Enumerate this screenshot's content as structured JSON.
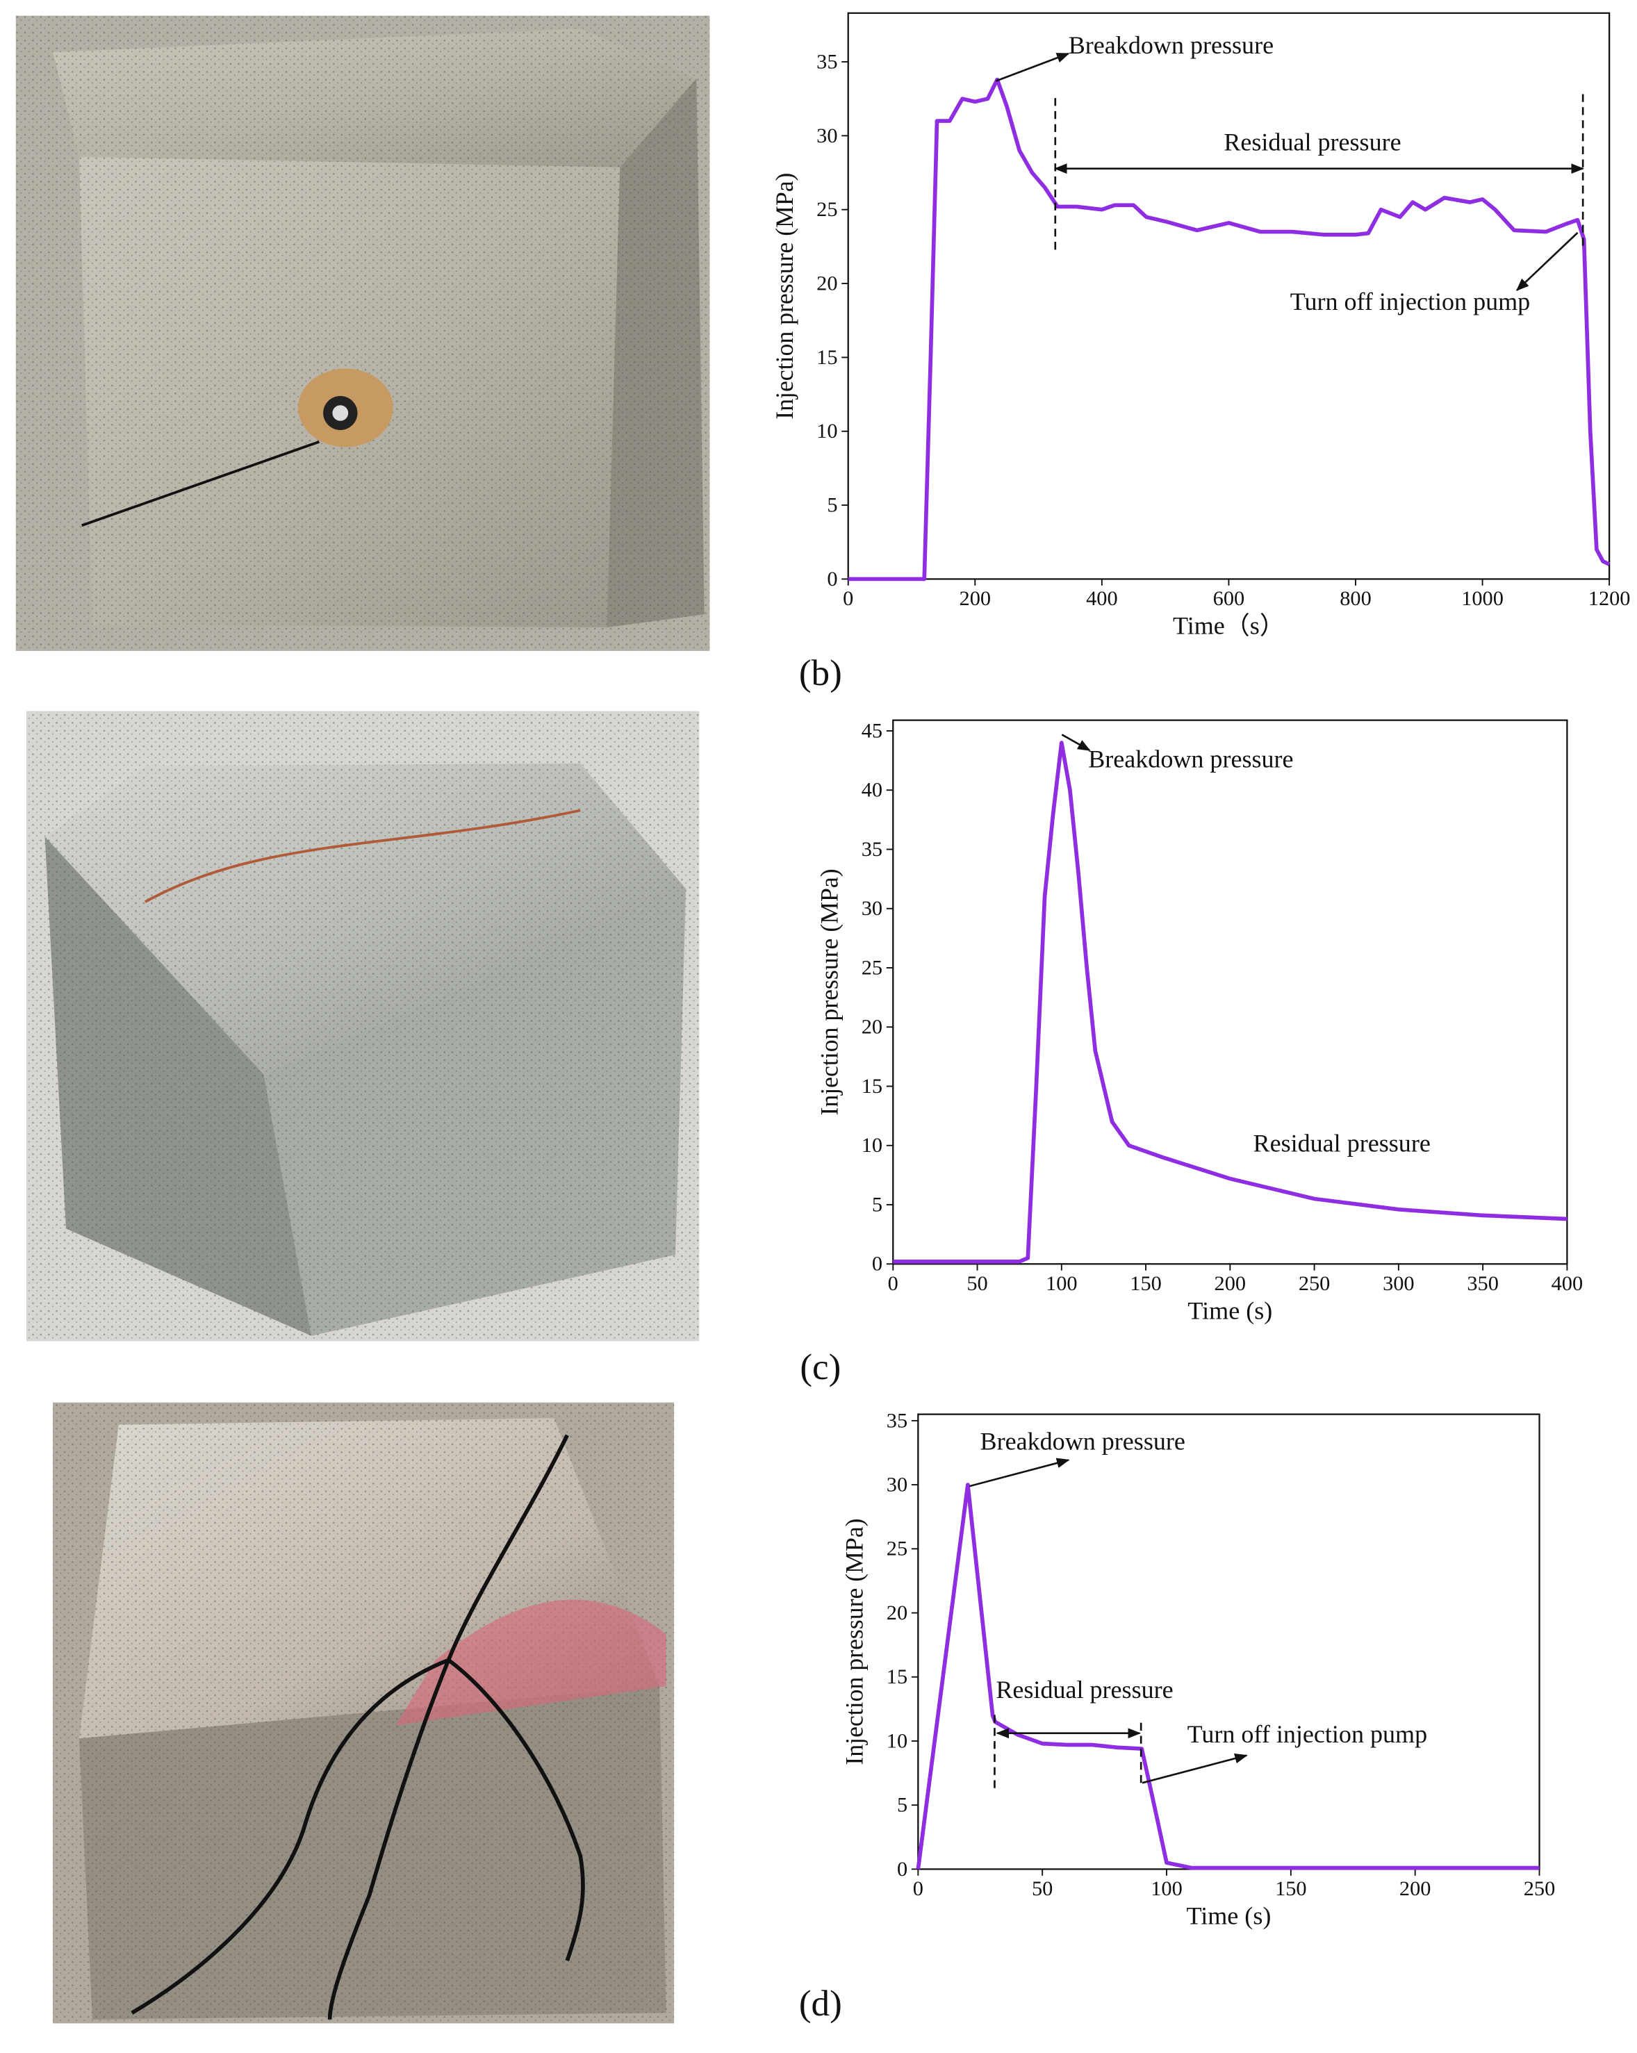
{
  "chart_data": [
    {
      "type": "line",
      "panel_label": "(b)",
      "x_label": "Time（s）",
      "y_label": "Injection pressure (MPa)",
      "color": "#8e2de2",
      "x": [
        0,
        120,
        130,
        140,
        160,
        180,
        200,
        220,
        235,
        250,
        270,
        290,
        310,
        330,
        360,
        400,
        420,
        450,
        470,
        500,
        550,
        600,
        650,
        700,
        750,
        800,
        820,
        840,
        870,
        890,
        910,
        940,
        980,
        1000,
        1020,
        1050,
        1100,
        1130,
        1150,
        1160,
        1170,
        1180,
        1190,
        1200
      ],
      "values": [
        0,
        0,
        15,
        31,
        31,
        32.5,
        32.3,
        32.5,
        33.8,
        32,
        29,
        27.5,
        26.5,
        25.2,
        25.2,
        25,
        25.3,
        25.3,
        24.5,
        24.2,
        23.6,
        24.1,
        23.5,
        23.5,
        23.3,
        23.3,
        23.4,
        25,
        24.5,
        25.5,
        25,
        25.8,
        25.5,
        25.7,
        25,
        23.6,
        23.5,
        24,
        24.3,
        23,
        10,
        2,
        1.2,
        1
      ],
      "xlim": [
        0,
        1200
      ],
      "ylim": [
        0,
        38.3
      ],
      "xticks": [
        0,
        200,
        400,
        600,
        800,
        1000,
        1200
      ],
      "yticks": [
        0,
        5,
        10,
        15,
        20,
        25,
        30,
        35
      ],
      "annotations": [
        "Breakdown pressure",
        "Residual pressure",
        "Turn off injection pump"
      ]
    },
    {
      "type": "line",
      "panel_label": "(c)",
      "x_label": "Time (s)",
      "y_label": "Injection pressure (MPa)",
      "color": "#8e2de2",
      "x": [
        0,
        75,
        80,
        85,
        90,
        95,
        100,
        105,
        110,
        115,
        120,
        125,
        130,
        140,
        160,
        200,
        250,
        300,
        350,
        400
      ],
      "values": [
        0.2,
        0.2,
        0.5,
        15,
        31,
        38,
        44,
        40,
        33,
        25,
        18,
        15,
        12,
        10,
        9,
        7.2,
        5.5,
        4.6,
        4.1,
        3.8
      ],
      "xlim": [
        0,
        400
      ],
      "ylim": [
        0,
        45.9
      ],
      "xticks": [
        0,
        50,
        100,
        150,
        200,
        250,
        300,
        350,
        400
      ],
      "yticks": [
        0,
        5,
        10,
        15,
        20,
        25,
        30,
        35,
        40,
        45
      ],
      "annotations": [
        "Breakdown pressure",
        "Residual pressure"
      ]
    },
    {
      "type": "line",
      "panel_label": "(d)",
      "x_label": "Time (s)",
      "y_label": "Injection pressure (MPa)",
      "color": "#8e2de2",
      "x": [
        0,
        10,
        20,
        25,
        30,
        31,
        40,
        50,
        60,
        70,
        80,
        90,
        95,
        100,
        110,
        250
      ],
      "values": [
        0,
        15,
        30,
        21,
        12,
        11.5,
        10.5,
        9.8,
        9.7,
        9.7,
        9.5,
        9.4,
        5,
        0.5,
        0.1,
        0.1
      ],
      "xlim": [
        0,
        250
      ],
      "ylim": [
        0,
        35.5
      ],
      "xticks": [
        0,
        50,
        100,
        150,
        200,
        250
      ],
      "yticks": [
        0,
        5,
        10,
        15,
        20,
        25,
        30,
        35
      ],
      "annotations": [
        "Breakdown pressure",
        "Residual pressure",
        "Turn off injection pump"
      ]
    }
  ]
}
